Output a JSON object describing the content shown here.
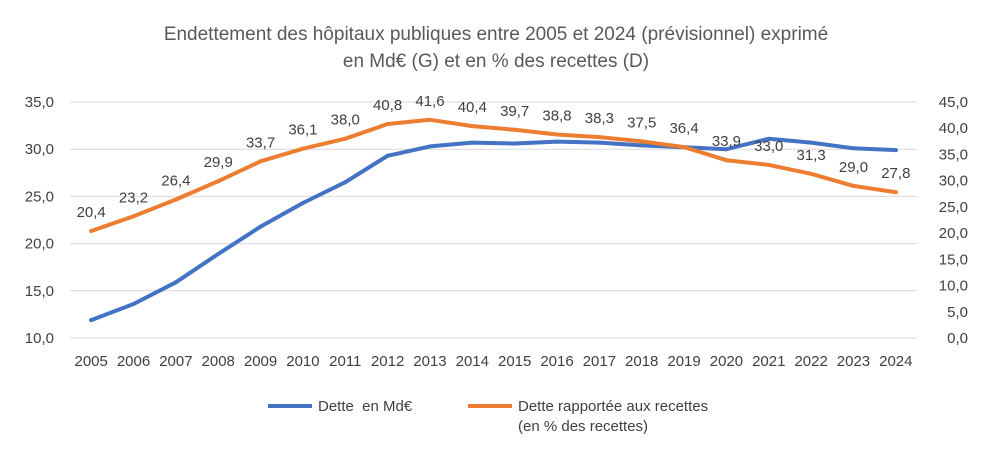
{
  "chart_data": {
    "type": "line",
    "title": [
      "Endettement des hôpitaux publiques entre 2005 et 2024 (prévisionnel) exprimé",
      "en Md€ (G) et en % des recettes (D)"
    ],
    "x": [
      "2005",
      "2006",
      "2007",
      "2008",
      "2009",
      "2010",
      "2011",
      "2012",
      "2013",
      "2014",
      "2015",
      "2016",
      "2017",
      "2018",
      "2019",
      "2020",
      "2021",
      "2022",
      "2023",
      "2024"
    ],
    "y_left": {
      "range": [
        10,
        35
      ],
      "ticks": [
        "10,0",
        "15,0",
        "20,0",
        "25,0",
        "30,0",
        "35,0"
      ],
      "tick_values": [
        10,
        15,
        20,
        25,
        30,
        35
      ]
    },
    "y_right": {
      "range": [
        0,
        45
      ],
      "ticks": [
        "0,0",
        "5,0",
        "10,0",
        "15,0",
        "20,0",
        "25,0",
        "30,0",
        "35,0",
        "40,0",
        "45,0"
      ],
      "tick_values": [
        0,
        5,
        10,
        15,
        20,
        25,
        30,
        35,
        40,
        45
      ]
    },
    "grid": true,
    "legend_position": "bottom",
    "series": [
      {
        "name": "Dette  en Md€",
        "axis": "left",
        "color": "#4472c4",
        "values": [
          11.9,
          13.6,
          15.9,
          18.9,
          21.8,
          24.3,
          26.5,
          29.3,
          30.3,
          30.7,
          30.6,
          30.8,
          30.7,
          30.4,
          30.2,
          30.0,
          31.1,
          30.7,
          30.1,
          29.9
        ]
      },
      {
        "name": "Dette rapportée aux recettes",
        "name_line2": "(en % des recettes)",
        "axis": "right",
        "color": "#ed7d31",
        "values": [
          20.4,
          23.2,
          26.4,
          29.9,
          33.7,
          36.1,
          38.0,
          40.8,
          41.6,
          40.4,
          39.7,
          38.8,
          38.3,
          37.5,
          36.4,
          33.9,
          33.0,
          31.3,
          29.0,
          27.8
        ],
        "labels": [
          "20,4",
          "23,2",
          "26,4",
          "29,9",
          "33,7",
          "36,1",
          "38,0",
          "40,8",
          "41,6",
          "40,4",
          "39,7",
          "38,8",
          "38,3",
          "37,5",
          "36,4",
          "33,9",
          "33,0",
          "31,3",
          "29,0",
          "27,8"
        ]
      }
    ]
  }
}
